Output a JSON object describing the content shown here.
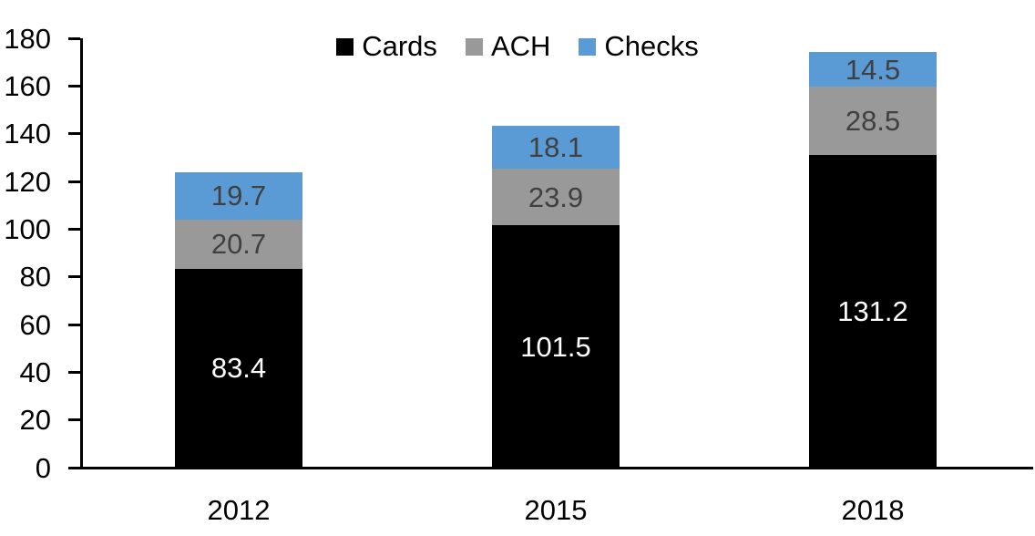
{
  "chart_data": {
    "type": "bar",
    "stacked": true,
    "title": "",
    "xlabel": "",
    "ylabel": "",
    "categories": [
      "2012",
      "2015",
      "2018"
    ],
    "series": [
      {
        "name": "Cards",
        "color": "#000000",
        "label_color": "#ffffff",
        "values": [
          83.4,
          101.5,
          131.2
        ]
      },
      {
        "name": "ACH",
        "color": "#999999",
        "label_color": "#404040",
        "values": [
          20.7,
          23.9,
          28.5
        ]
      },
      {
        "name": "Checks",
        "color": "#5b9bd5",
        "label_color": "#404040",
        "values": [
          19.7,
          18.1,
          14.5
        ]
      }
    ],
    "ylim": [
      0,
      180
    ],
    "yticks": [
      0,
      20,
      40,
      60,
      80,
      100,
      120,
      140,
      160,
      180
    ],
    "grid": false,
    "legend_position": "top-center",
    "axis_color": "#000000",
    "background_color": "#ffffff",
    "data_label_decimals": 1
  }
}
